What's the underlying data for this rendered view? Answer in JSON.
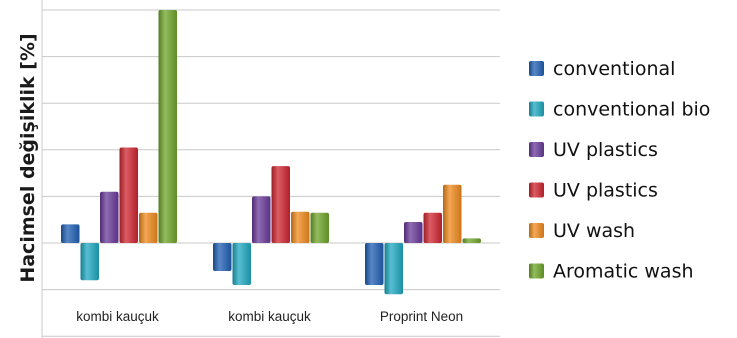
{
  "chart_data": {
    "type": "bar",
    "title": "",
    "xlabel": "",
    "ylabel": "Hacimsel değişiklik [%]",
    "categories": [
      "kombi kauçuk",
      "kombi kauçuk",
      "Proprint Neon"
    ],
    "ylim": [
      -2,
      5
    ],
    "grid": true,
    "legend_position": "right",
    "series": [
      {
        "name": "conventional",
        "color": "#1f5fb4",
        "values": [
          0.4,
          -0.6,
          -0.9
        ]
      },
      {
        "name": "conventional bio",
        "color": "#1fa8c0",
        "values": [
          -0.8,
          -0.9,
          -1.1
        ]
      },
      {
        "name": "UV plastics",
        "color": "#6a3a9a",
        "values": [
          1.1,
          1.0,
          0.45
        ]
      },
      {
        "name": "UV plastics",
        "color": "#d02530",
        "values": [
          2.05,
          1.65,
          0.65
        ]
      },
      {
        "name": "UV wash",
        "color": "#f08a1c",
        "values": [
          0.65,
          0.67,
          1.25
        ]
      },
      {
        "name": "Aromatic wash",
        "color": "#6fa52a",
        "values": [
          5.0,
          0.65,
          0.1
        ]
      }
    ]
  }
}
